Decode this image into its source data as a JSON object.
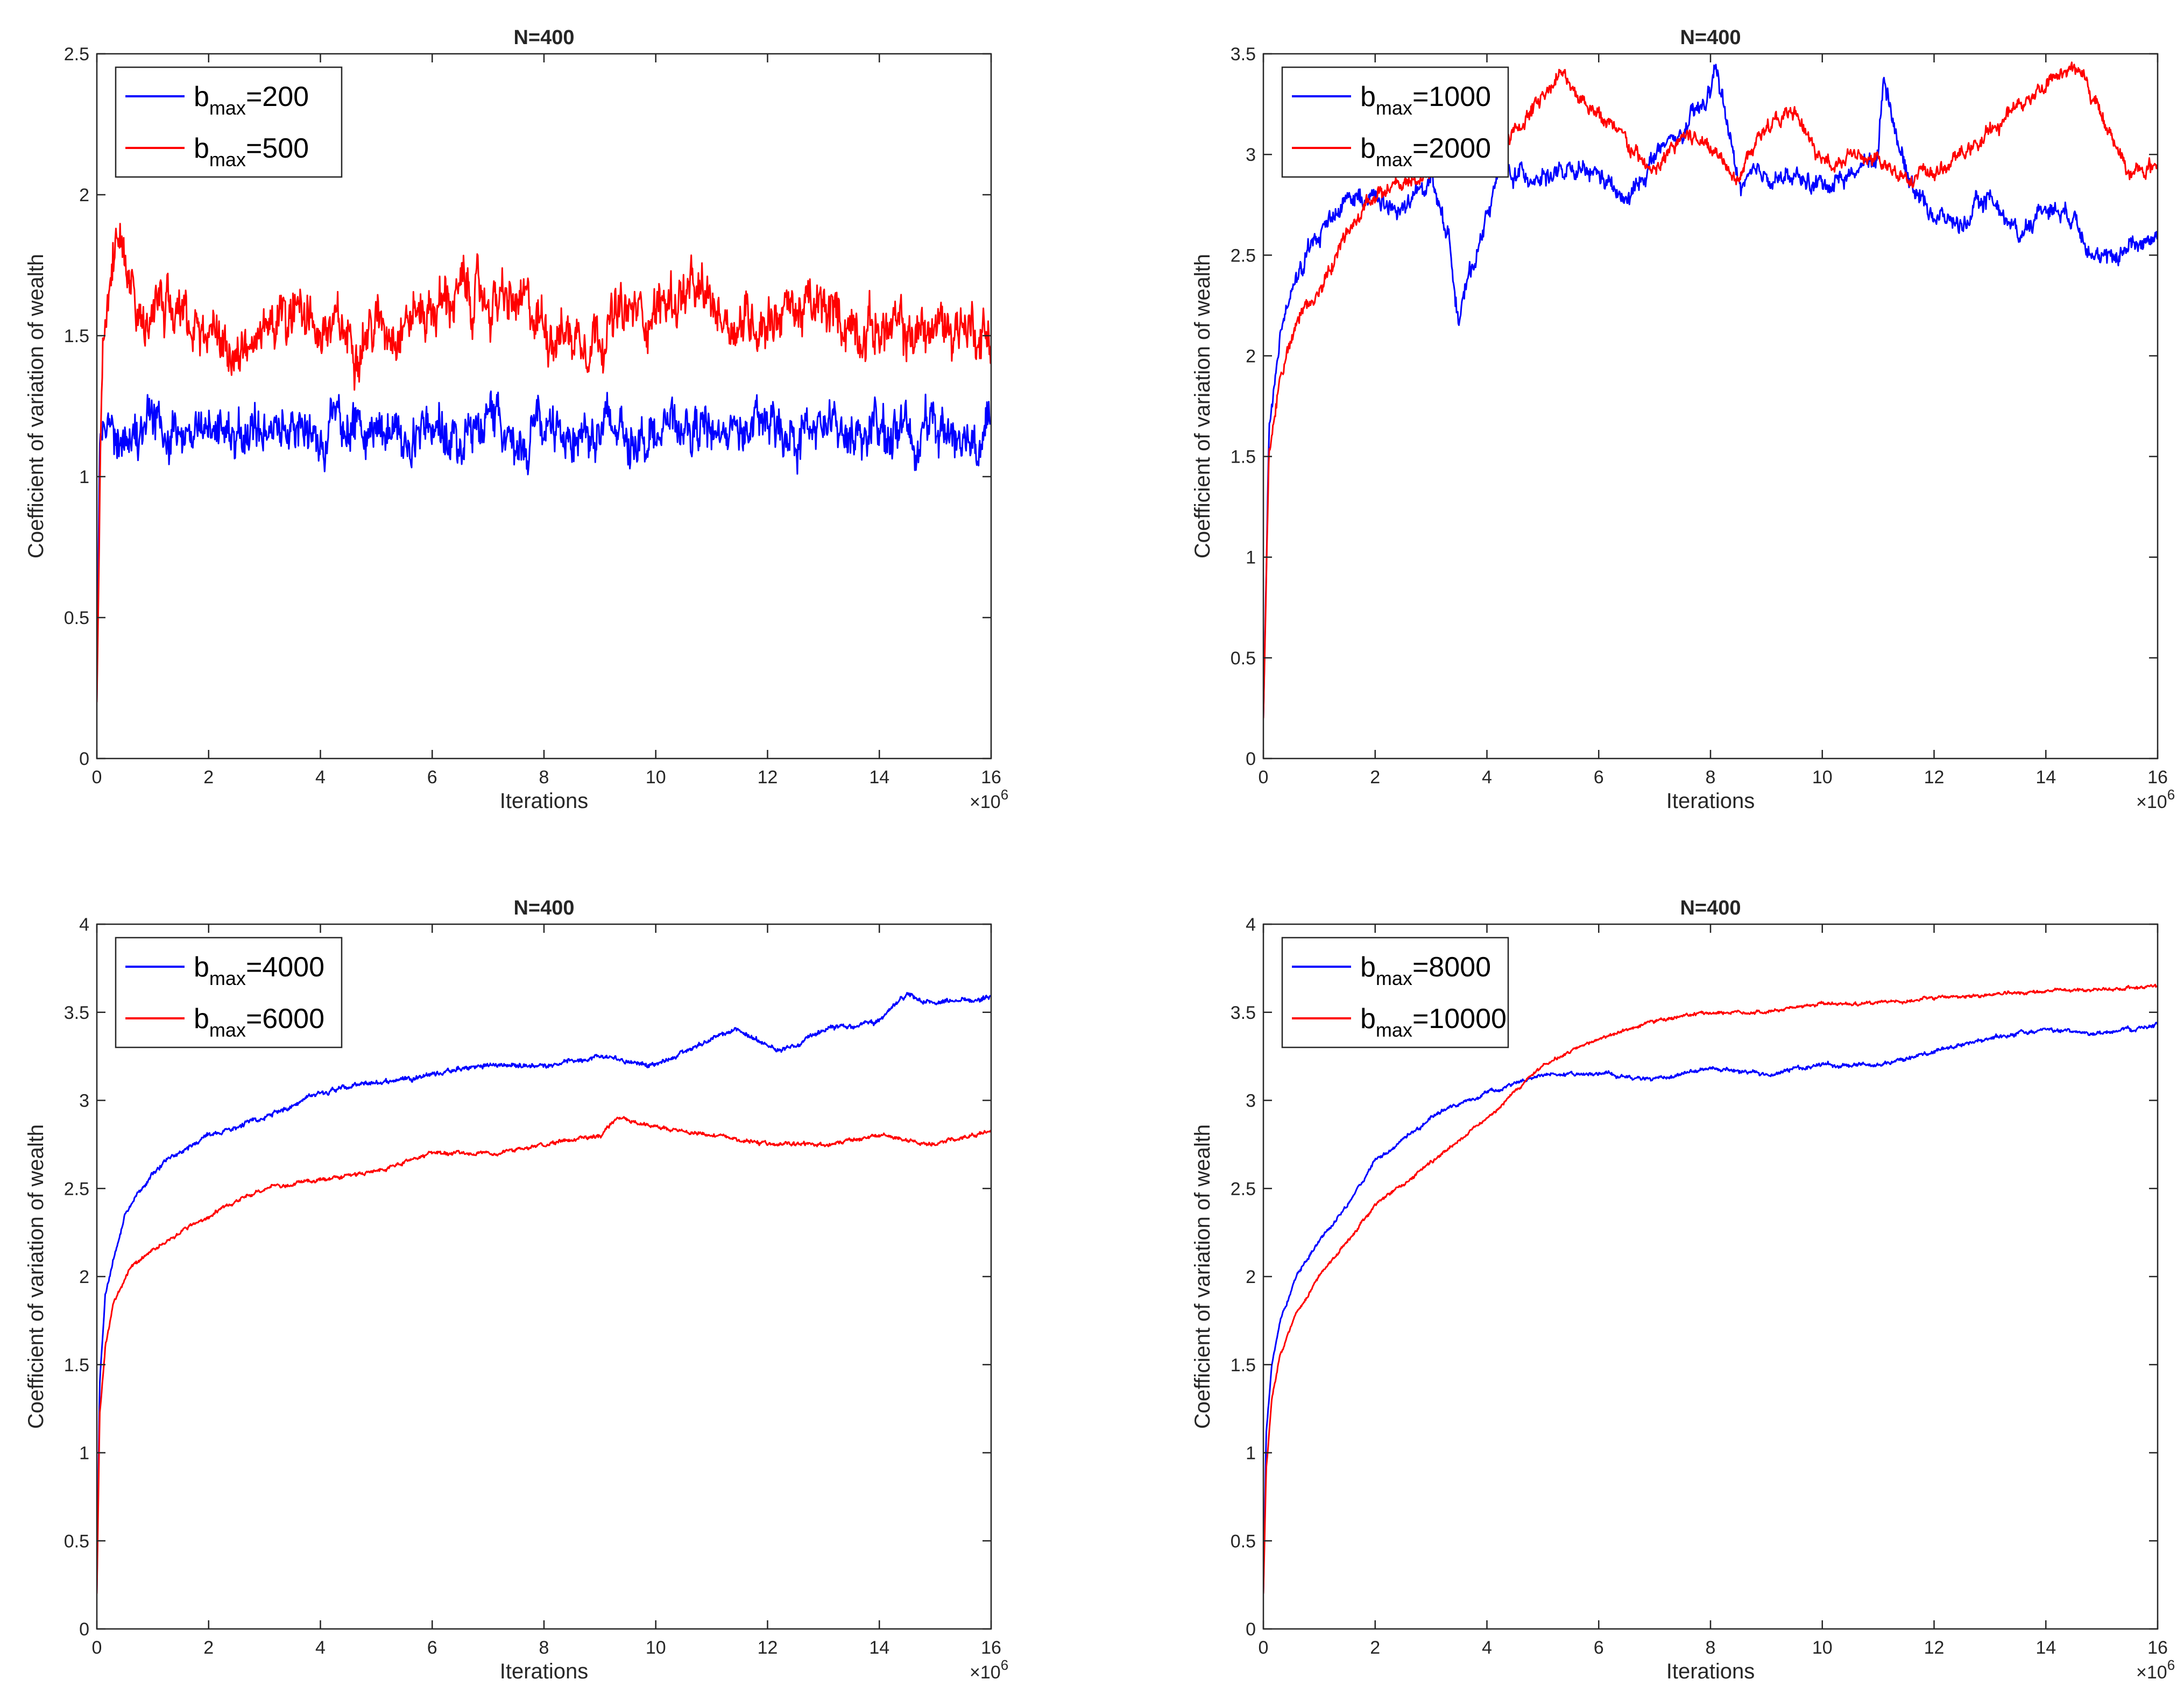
{
  "figure": {
    "description_free": true
  },
  "chart_data": [
    {
      "type": "line",
      "title": "N=400",
      "xlabel": "Iterations",
      "ylabel": "Coefficient of variation of wealth",
      "x_exponent_label": "×10",
      "x_exponent_power": "6",
      "xlim": [
        0,
        16
      ],
      "ylim": [
        0,
        2.5
      ],
      "xticks": [
        "0",
        "2",
        "4",
        "6",
        "8",
        "10",
        "12",
        "14",
        "16"
      ],
      "yticks": [
        "0",
        "0.5",
        "1",
        "1.5",
        "2",
        "2.5"
      ],
      "legend_position": "top-left",
      "series": [
        {
          "name": "b_max=200",
          "legend_prefix": "b",
          "legend_sub": "max",
          "legend_suffix": "=200",
          "color": "#0000ff",
          "noise": 0.09,
          "x": [
            0,
            0.05,
            0.15,
            0.3,
            1,
            2,
            4,
            6,
            8,
            10,
            12,
            14,
            16
          ],
          "y": [
            0.2,
            1.1,
            1.17,
            1.17,
            1.17,
            1.16,
            1.17,
            1.16,
            1.17,
            1.16,
            1.17,
            1.16,
            1.17
          ]
        },
        {
          "name": "b_max=500",
          "legend_prefix": "b",
          "legend_sub": "max",
          "legend_suffix": "=500",
          "color": "#ff0000",
          "noise": 0.1,
          "x": [
            0,
            0.1,
            0.3,
            0.5,
            0.8,
            1.5,
            2.5,
            3.5,
            4.5,
            6,
            6.5,
            7.5,
            8.5,
            10,
            10.5,
            11.5,
            12.5,
            13.5,
            14.5,
            15.5,
            16
          ],
          "y": [
            0.2,
            1.5,
            1.85,
            1.7,
            1.6,
            1.55,
            1.45,
            1.55,
            1.5,
            1.6,
            1.65,
            1.6,
            1.5,
            1.6,
            1.65,
            1.55,
            1.6,
            1.55,
            1.5,
            1.55,
            1.5
          ]
        }
      ]
    },
    {
      "type": "line",
      "title": "N=400",
      "xlabel": "Iterations",
      "ylabel": "Coefficient of variation of wealth",
      "x_exponent_label": "×10",
      "x_exponent_power": "6",
      "xlim": [
        0,
        16
      ],
      "ylim": [
        0,
        3.5
      ],
      "xticks": [
        "0",
        "2",
        "4",
        "6",
        "8",
        "10",
        "12",
        "14",
        "16"
      ],
      "yticks": [
        "0",
        "0.5",
        "1",
        "1.5",
        "2",
        "2.5",
        "3",
        "3.5"
      ],
      "legend_position": "top-left",
      "series": [
        {
          "name": "b_max=1000",
          "legend_prefix": "b",
          "legend_sub": "max",
          "legend_suffix": "=1000",
          "color": "#0000ff",
          "noise": 0.05,
          "x": [
            0,
            0.1,
            0.3,
            0.6,
            1,
            1.5,
            2,
            2.5,
            3,
            3.3,
            3.5,
            3.8,
            4.2,
            5,
            5.5,
            6,
            6.5,
            7,
            7.5,
            8,
            8.1,
            8.5,
            9,
            10,
            10.5,
            11,
            11.1,
            11.5,
            12,
            12.5,
            13,
            13.5,
            14,
            14.5,
            15,
            15.5,
            16
          ],
          "y": [
            0.2,
            1.6,
            2.1,
            2.4,
            2.6,
            2.8,
            2.8,
            2.7,
            2.9,
            2.6,
            2.2,
            2.5,
            2.9,
            2.9,
            2.9,
            2.9,
            2.75,
            3.0,
            3.1,
            3.3,
            3.45,
            2.85,
            2.9,
            2.85,
            2.9,
            3.0,
            3.4,
            2.9,
            2.7,
            2.65,
            2.8,
            2.6,
            2.75,
            2.7,
            2.45,
            2.55,
            2.6
          ]
        },
        {
          "name": "b_max=2000",
          "legend_prefix": "b",
          "legend_sub": "max",
          "legend_suffix": "=2000",
          "color": "#ff0000",
          "noise": 0.04,
          "x": [
            0,
            0.1,
            0.3,
            0.6,
            1,
            1.5,
            2,
            3,
            4,
            4.5,
            5,
            5.3,
            6,
            7,
            7.5,
            8,
            8.5,
            9,
            9.5,
            10,
            10.5,
            11,
            11.5,
            12,
            12.5,
            13,
            13.5,
            14,
            14.5,
            15,
            15.5,
            16
          ],
          "y": [
            0.2,
            1.5,
            1.9,
            2.15,
            2.35,
            2.6,
            2.8,
            2.9,
            3.0,
            3.1,
            3.3,
            3.4,
            3.2,
            2.9,
            3.1,
            3.05,
            2.9,
            3.15,
            3.2,
            2.95,
            3.0,
            2.95,
            2.9,
            2.9,
            3.0,
            3.1,
            3.25,
            3.35,
            3.45,
            3.2,
            2.9,
            2.95
          ]
        }
      ]
    },
    {
      "type": "line",
      "title": "N=400",
      "xlabel": "Iterations",
      "ylabel": "Coefficient of variation of wealth",
      "x_exponent_label": "×10",
      "x_exponent_power": "6",
      "xlim": [
        0,
        16
      ],
      "ylim": [
        0,
        4
      ],
      "xticks": [
        "0",
        "2",
        "4",
        "6",
        "8",
        "10",
        "12",
        "14",
        "16"
      ],
      "yticks": [
        "0",
        "0.5",
        "1",
        "1.5",
        "2",
        "2.5",
        "3",
        "3.5",
        "4"
      ],
      "legend_position": "top-left",
      "series": [
        {
          "name": "b_max=4000",
          "legend_prefix": "b",
          "legend_sub": "max",
          "legend_suffix": "=4000",
          "color": "#0000ff",
          "noise": 0.015,
          "x": [
            0,
            0.05,
            0.15,
            0.3,
            0.5,
            0.8,
            1.2,
            2,
            3,
            4,
            5,
            6,
            7,
            8,
            9,
            10,
            11,
            11.5,
            12,
            12.5,
            13,
            14,
            14.5,
            15,
            16
          ],
          "y": [
            0.2,
            1.4,
            1.9,
            2.1,
            2.35,
            2.5,
            2.65,
            2.8,
            2.9,
            3.05,
            3.1,
            3.15,
            3.2,
            3.2,
            3.25,
            3.2,
            3.35,
            3.4,
            3.3,
            3.3,
            3.4,
            3.45,
            3.6,
            3.55,
            3.58
          ]
        },
        {
          "name": "b_max=6000",
          "legend_prefix": "b",
          "legend_sub": "max",
          "legend_suffix": "=6000",
          "color": "#ff0000",
          "noise": 0.012,
          "x": [
            0,
            0.05,
            0.15,
            0.3,
            0.6,
            1,
            2,
            3,
            4,
            5,
            6,
            7,
            8,
            9,
            9.3,
            10,
            11,
            12,
            13,
            14,
            15,
            16
          ],
          "y": [
            0.2,
            1.2,
            1.6,
            1.85,
            2.05,
            2.15,
            2.35,
            2.5,
            2.55,
            2.6,
            2.7,
            2.7,
            2.75,
            2.8,
            2.9,
            2.85,
            2.8,
            2.75,
            2.75,
            2.8,
            2.75,
            2.83
          ]
        }
      ]
    },
    {
      "type": "line",
      "title": "N=400",
      "xlabel": "Iterations",
      "ylabel": "Coefficient of variation of wealth",
      "x_exponent_label": "×10",
      "x_exponent_power": "6",
      "xlim": [
        0,
        16
      ],
      "ylim": [
        0,
        4
      ],
      "xticks": [
        "0",
        "2",
        "4",
        "6",
        "8",
        "10",
        "12",
        "14",
        "16"
      ],
      "yticks": [
        "0",
        "0.5",
        "1",
        "1.5",
        "2",
        "2.5",
        "3",
        "3.5",
        "4"
      ],
      "legend_position": "top-left",
      "series": [
        {
          "name": "b_max=8000",
          "legend_prefix": "b",
          "legend_sub": "max",
          "legend_suffix": "=8000",
          "color": "#0000ff",
          "noise": 0.012,
          "x": [
            0,
            0.05,
            0.15,
            0.3,
            0.6,
            1,
            1.5,
            2,
            3,
            4,
            5,
            6,
            7,
            8,
            9,
            10,
            11,
            12,
            13,
            14,
            15,
            16
          ],
          "y": [
            0.2,
            1.1,
            1.5,
            1.75,
            2.0,
            2.2,
            2.4,
            2.65,
            2.9,
            3.05,
            3.15,
            3.15,
            3.12,
            3.18,
            3.15,
            3.2,
            3.2,
            3.28,
            3.35,
            3.4,
            3.38,
            3.43
          ]
        },
        {
          "name": "b_max=10000",
          "legend_prefix": "b",
          "legend_sub": "max",
          "legend_suffix": "=10000",
          "color": "#ff0000",
          "noise": 0.01,
          "x": [
            0,
            0.05,
            0.15,
            0.3,
            0.6,
            1,
            1.5,
            2,
            3,
            4,
            4.5,
            5,
            6,
            7,
            8,
            9,
            10,
            11,
            12,
            13,
            14,
            15,
            16
          ],
          "y": [
            0.2,
            0.9,
            1.3,
            1.55,
            1.8,
            2.0,
            2.2,
            2.4,
            2.65,
            2.9,
            3.05,
            3.2,
            3.35,
            3.45,
            3.5,
            3.5,
            3.55,
            3.55,
            3.58,
            3.6,
            3.62,
            3.63,
            3.65
          ]
        }
      ]
    }
  ]
}
